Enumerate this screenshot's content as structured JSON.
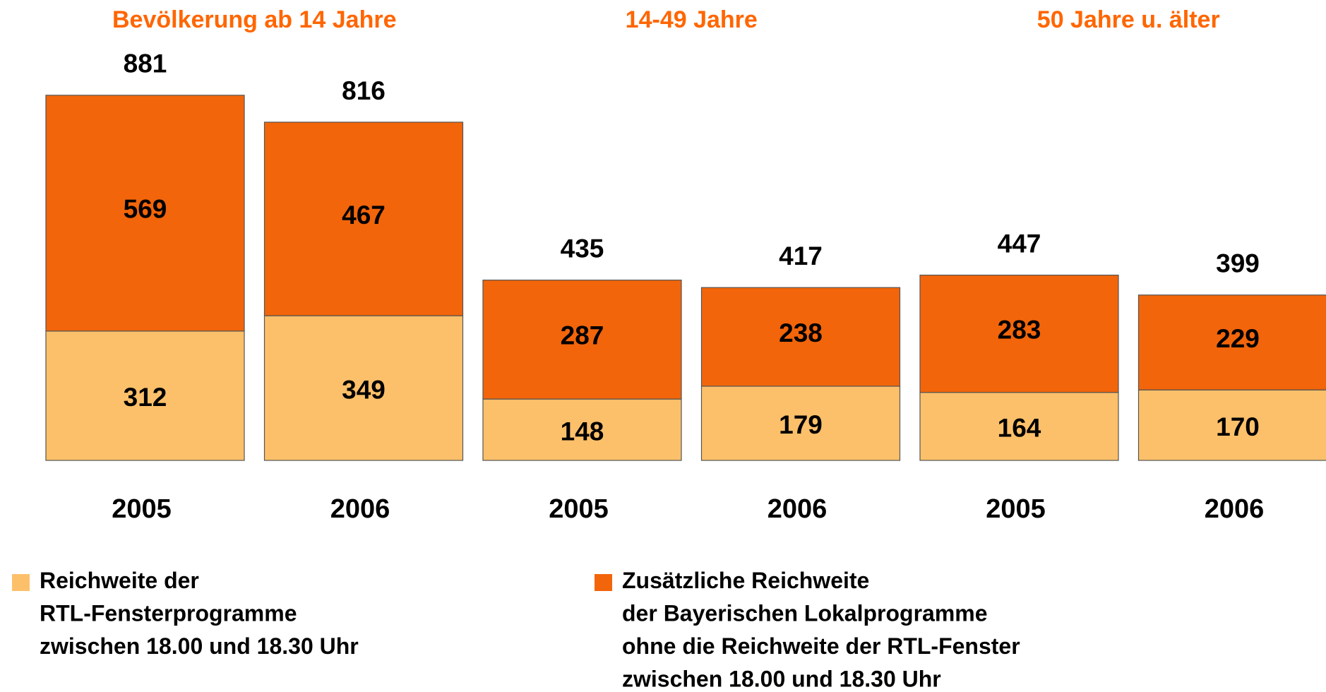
{
  "chart_data": {
    "type": "stacked-bar",
    "group_titles": [
      "Bevölkerung ab 14 Jahre",
      "14-49 Jahre",
      "50 Jahre u. älter"
    ],
    "categories": [
      "2005",
      "2006",
      "2005",
      "2006",
      "2005",
      "2006"
    ],
    "series": [
      {
        "name": "Reichweite der\nRTL-Fensterprogramme\nzwischen 18.00 und 18.30 Uhr",
        "color": "#fdc06a",
        "values": [
          312,
          349,
          148,
          179,
          164,
          170
        ]
      },
      {
        "name": "Zusätzliche Reichweite\nder Bayerischen Lokalprogramme\nohne die Reichweite der RTL-Fenster\nzwischen  18.00 und 18.30 Uhr",
        "color": "#f2650a",
        "values": [
          569,
          467,
          287,
          238,
          283,
          229
        ]
      }
    ],
    "totals": [
      881,
      816,
      435,
      417,
      447,
      399
    ]
  }
}
